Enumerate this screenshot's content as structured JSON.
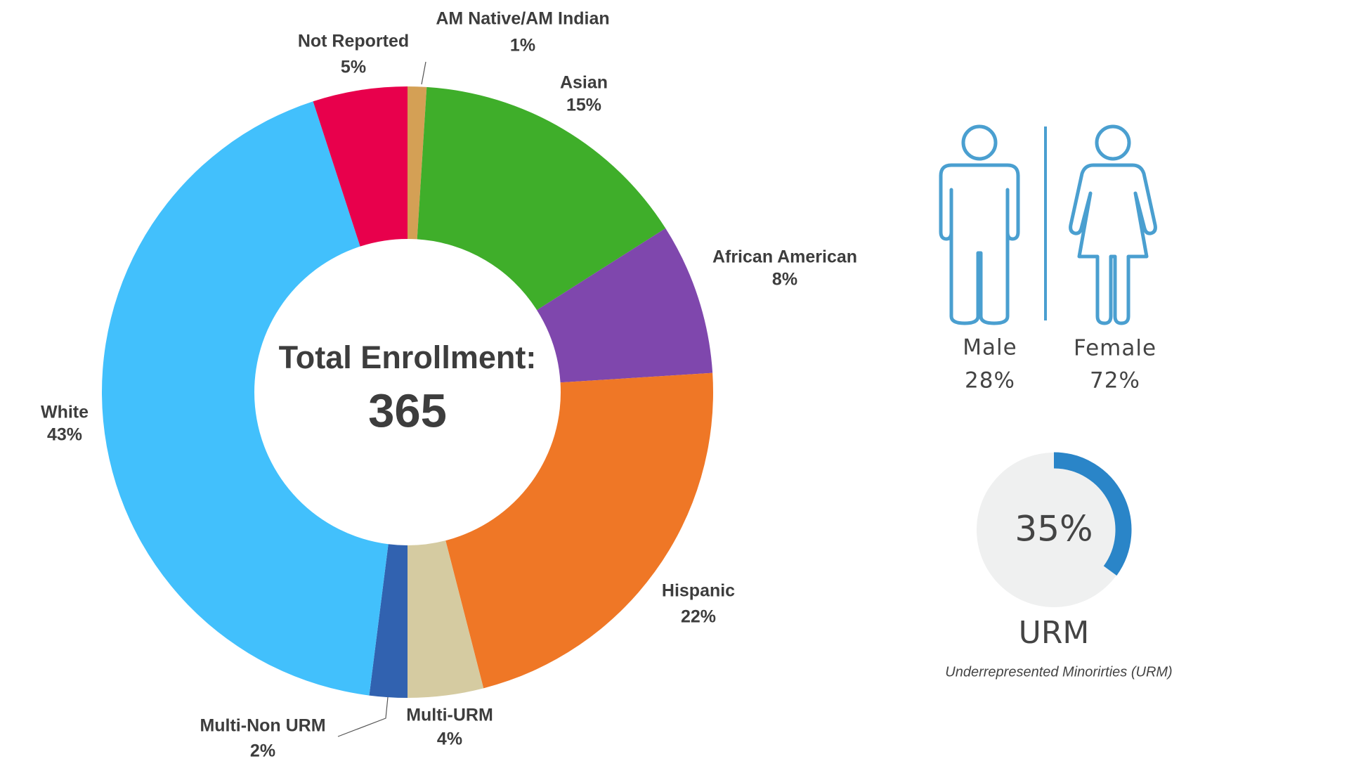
{
  "chart_data": [
    {
      "type": "donut",
      "center_title": "Total Enrollment:",
      "center_value": 365,
      "categories": [
        "AM Native/AM Indian",
        "Asian",
        "African American",
        "Hispanic",
        "Multi-URM",
        "Multi-Non URM",
        "White",
        "Not Reported"
      ],
      "values": [
        1,
        15,
        8,
        22,
        4,
        2,
        43,
        5
      ],
      "value_labels": [
        "1%",
        "15%",
        "8%",
        "22%",
        "4%",
        "2%",
        "43%",
        "5%"
      ],
      "colors": [
        "#d4a055",
        "#3fae2a",
        "#7f47ad",
        "#ef7726",
        "#d5cba1",
        "#3162b0",
        "#42c0fc",
        "#e8004c"
      ]
    },
    {
      "type": "gauge",
      "value": 35,
      "value_label": "35%",
      "ylim": [
        0,
        100
      ],
      "color": "#2a85c8",
      "label": "URM",
      "note": "Underrepresented Minorirties (URM)"
    }
  ],
  "gender": [
    {
      "label": "Male",
      "value_label": "28%"
    },
    {
      "label": "Female",
      "value_label": "72%"
    }
  ]
}
